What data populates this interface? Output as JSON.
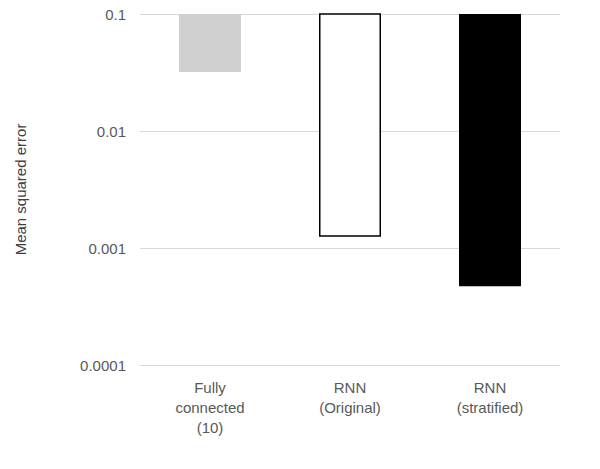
{
  "chart_data": {
    "type": "bar",
    "categories": [
      "Fully\nconnected\n(10)",
      "RNN\n(Original)",
      "RNN\n(stratified)"
    ],
    "values": [
      0.032,
      0.00125,
      0.00047
    ],
    "colors": [
      "#d0d0d0",
      "#ffffff",
      "#000000"
    ],
    "ylabel": "Mean squared error",
    "log": "y",
    "ylim": [
      0.0001,
      0.1
    ],
    "yticks": [
      0.0001,
      0.001,
      0.01,
      0.1
    ],
    "grid": true
  }
}
